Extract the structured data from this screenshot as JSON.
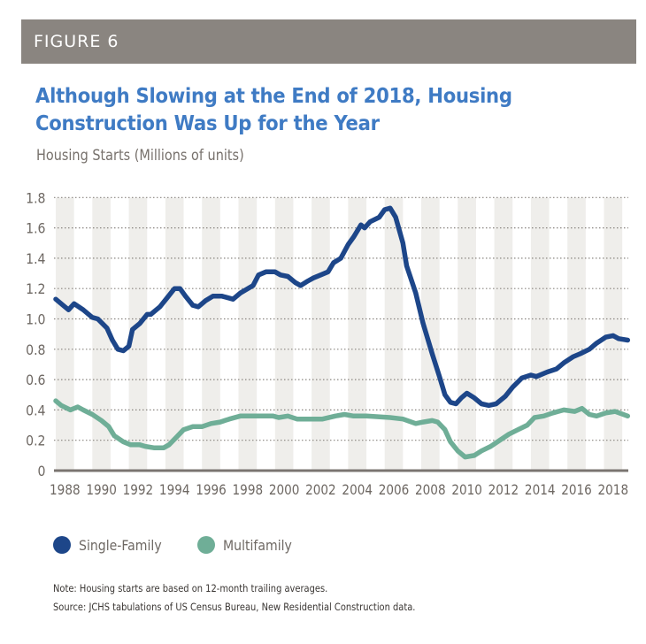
{
  "figure_label": "FIGURE 6",
  "title": "Although Slowing at the End of 2018, Housing Construction Was Up for the Year",
  "subtitle": "Housing Starts (Millions of units)",
  "legend": [
    {
      "label": "Single-Family",
      "color": "#1d4689"
    },
    {
      "label": "Multifamily",
      "color": "#6fae97"
    }
  ],
  "notes": {
    "note": "Note: Housing starts are based on 12-month trailing averages.",
    "source": "Source: JCHS tabulations of US Census Bureau, New Residential Construction data."
  },
  "colors": {
    "header_bar": "#8a8580",
    "title": "#3f7bc4",
    "band": "#efeeeb",
    "axis": "#7a7470",
    "grid": "#8a8580"
  },
  "chart_data": {
    "type": "line",
    "title": "Although Slowing at the End of 2018, Housing Construction Was Up for the Year",
    "ylabel": "Housing Starts (Millions of units)",
    "xlabel": "",
    "xlim": [
      1988,
      2019.35
    ],
    "ylim": [
      0,
      1.8
    ],
    "yticks": [
      0,
      0.2,
      0.4,
      0.6,
      0.8,
      1.0,
      1.2,
      1.4,
      1.6,
      1.8
    ],
    "ytick_labels": [
      "0",
      "0.2",
      "0.4",
      "0.6",
      "0.8",
      "1.0",
      "1.2",
      "1.4",
      "1.6",
      "1.8"
    ],
    "xticks": [
      1988,
      1990,
      1992,
      1994,
      1996,
      1998,
      2000,
      2002,
      2004,
      2006,
      2008,
      2010,
      2012,
      2014,
      2016,
      2018
    ],
    "xtick_labels": [
      "1988",
      "1990",
      "1992",
      "1994",
      "1996",
      "1998",
      "2000",
      "2002",
      "2004",
      "2006",
      "2008",
      "2010",
      "2012",
      "2014",
      "2016",
      "2018"
    ],
    "year_bands": "alternating shaded bands, one per year, 1988-2018 (even years shaded)",
    "grid": "horizontal dotted",
    "legend_position": "bottom-left",
    "series": [
      {
        "name": "Single-Family",
        "color": "#1d4689",
        "points": [
          [
            1988.0,
            1.13
          ],
          [
            1988.5,
            1.08
          ],
          [
            1988.7,
            1.06
          ],
          [
            1989.0,
            1.1
          ],
          [
            1989.5,
            1.06
          ],
          [
            1990.0,
            1.01
          ],
          [
            1990.3,
            1.0
          ],
          [
            1990.8,
            0.94
          ],
          [
            1991.1,
            0.86
          ],
          [
            1991.4,
            0.8
          ],
          [
            1991.7,
            0.79
          ],
          [
            1992.0,
            0.82
          ],
          [
            1992.2,
            0.93
          ],
          [
            1992.6,
            0.97
          ],
          [
            1993.0,
            1.03
          ],
          [
            1993.2,
            1.03
          ],
          [
            1993.7,
            1.08
          ],
          [
            1994.1,
            1.14
          ],
          [
            1994.5,
            1.2
          ],
          [
            1994.8,
            1.2
          ],
          [
            1995.1,
            1.15
          ],
          [
            1995.5,
            1.09
          ],
          [
            1995.8,
            1.08
          ],
          [
            1996.2,
            1.12
          ],
          [
            1996.6,
            1.15
          ],
          [
            1997.1,
            1.15
          ],
          [
            1997.7,
            1.13
          ],
          [
            1998.1,
            1.17
          ],
          [
            1998.8,
            1.22
          ],
          [
            1999.1,
            1.29
          ],
          [
            1999.5,
            1.31
          ],
          [
            2000.0,
            1.31
          ],
          [
            2000.3,
            1.29
          ],
          [
            2000.7,
            1.28
          ],
          [
            2001.1,
            1.24
          ],
          [
            2001.4,
            1.22
          ],
          [
            2001.8,
            1.25
          ],
          [
            2002.1,
            1.27
          ],
          [
            2002.5,
            1.29
          ],
          [
            2002.9,
            1.31
          ],
          [
            2003.2,
            1.37
          ],
          [
            2003.6,
            1.4
          ],
          [
            2004.0,
            1.49
          ],
          [
            2004.3,
            1.54
          ],
          [
            2004.7,
            1.62
          ],
          [
            2004.9,
            1.6
          ],
          [
            2005.2,
            1.64
          ],
          [
            2005.7,
            1.67
          ],
          [
            2006.0,
            1.72
          ],
          [
            2006.3,
            1.73
          ],
          [
            2006.6,
            1.67
          ],
          [
            2007.0,
            1.5
          ],
          [
            2007.2,
            1.35
          ],
          [
            2007.7,
            1.17
          ],
          [
            2008.1,
            0.97
          ],
          [
            2008.6,
            0.77
          ],
          [
            2009.0,
            0.62
          ],
          [
            2009.3,
            0.5
          ],
          [
            2009.6,
            0.45
          ],
          [
            2009.9,
            0.44
          ],
          [
            2010.2,
            0.48
          ],
          [
            2010.5,
            0.51
          ],
          [
            2010.9,
            0.48
          ],
          [
            2011.3,
            0.44
          ],
          [
            2011.7,
            0.43
          ],
          [
            2012.1,
            0.44
          ],
          [
            2012.6,
            0.49
          ],
          [
            2013.0,
            0.55
          ],
          [
            2013.5,
            0.61
          ],
          [
            2014.0,
            0.63
          ],
          [
            2014.3,
            0.62
          ],
          [
            2014.9,
            0.65
          ],
          [
            2015.4,
            0.67
          ],
          [
            2015.8,
            0.71
          ],
          [
            2016.3,
            0.75
          ],
          [
            2016.7,
            0.77
          ],
          [
            2017.2,
            0.8
          ],
          [
            2017.6,
            0.84
          ],
          [
            2018.1,
            0.88
          ],
          [
            2018.5,
            0.89
          ],
          [
            2018.8,
            0.87
          ],
          [
            2019.3,
            0.86
          ]
        ]
      },
      {
        "name": "Multifamily",
        "color": "#6fae97",
        "points": [
          [
            1988.0,
            0.46
          ],
          [
            1988.3,
            0.43
          ],
          [
            1988.8,
            0.4
          ],
          [
            1989.2,
            0.42
          ],
          [
            1989.5,
            0.4
          ],
          [
            1990.0,
            0.37
          ],
          [
            1990.5,
            0.33
          ],
          [
            1990.9,
            0.29
          ],
          [
            1991.2,
            0.23
          ],
          [
            1991.7,
            0.19
          ],
          [
            1992.1,
            0.17
          ],
          [
            1992.6,
            0.17
          ],
          [
            1992.9,
            0.16
          ],
          [
            1993.4,
            0.15
          ],
          [
            1993.9,
            0.15
          ],
          [
            1994.2,
            0.17
          ],
          [
            1994.6,
            0.22
          ],
          [
            1995.0,
            0.27
          ],
          [
            1995.5,
            0.29
          ],
          [
            1996.0,
            0.29
          ],
          [
            1996.5,
            0.31
          ],
          [
            1997.0,
            0.32
          ],
          [
            1997.5,
            0.34
          ],
          [
            1998.1,
            0.36
          ],
          [
            1998.7,
            0.36
          ],
          [
            1999.3,
            0.36
          ],
          [
            1999.9,
            0.36
          ],
          [
            2000.2,
            0.35
          ],
          [
            2000.7,
            0.36
          ],
          [
            2001.2,
            0.34
          ],
          [
            2001.9,
            0.34
          ],
          [
            2002.6,
            0.34
          ],
          [
            2003.3,
            0.36
          ],
          [
            2003.8,
            0.37
          ],
          [
            2004.3,
            0.36
          ],
          [
            2005.0,
            0.36
          ],
          [
            2006.3,
            0.35
          ],
          [
            2007.0,
            0.34
          ],
          [
            2007.7,
            0.31
          ],
          [
            2008.1,
            0.32
          ],
          [
            2008.6,
            0.33
          ],
          [
            2008.9,
            0.32
          ],
          [
            2009.3,
            0.27
          ],
          [
            2009.6,
            0.19
          ],
          [
            2010.0,
            0.13
          ],
          [
            2010.4,
            0.09
          ],
          [
            2010.9,
            0.1
          ],
          [
            2011.3,
            0.13
          ],
          [
            2011.8,
            0.16
          ],
          [
            2012.3,
            0.2
          ],
          [
            2012.8,
            0.24
          ],
          [
            2013.3,
            0.27
          ],
          [
            2013.8,
            0.3
          ],
          [
            2014.2,
            0.35
          ],
          [
            2014.7,
            0.36
          ],
          [
            2015.2,
            0.38
          ],
          [
            2015.8,
            0.4
          ],
          [
            2016.4,
            0.39
          ],
          [
            2016.8,
            0.41
          ],
          [
            2017.2,
            0.37
          ],
          [
            2017.6,
            0.36
          ],
          [
            2018.1,
            0.38
          ],
          [
            2018.6,
            0.39
          ],
          [
            2019.3,
            0.36
          ]
        ]
      }
    ]
  }
}
